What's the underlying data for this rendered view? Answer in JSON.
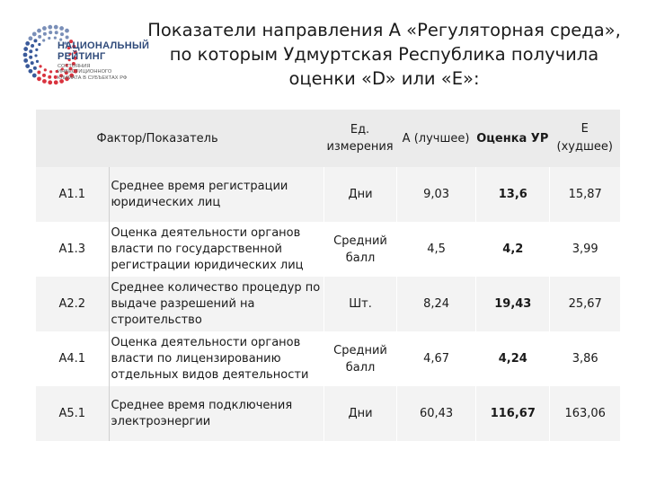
{
  "logo": {
    "line1": "НАЦИОНАЛЬНЫЙ",
    "line2": "РЕЙТИНГ",
    "sub1": "СОСТОЯНИЯ",
    "sub2": "ИНВЕСТИЦИОННОГО",
    "sub3": "КЛИМАТА В СУБЪЕКТАХ РФ"
  },
  "title": {
    "line1": "Показатели направления А «Регуляторная среда»,",
    "line2": "по которым Удмуртская Республика получила",
    "line3": "оценки «D» или «E»:"
  },
  "table": {
    "header": {
      "factor": "Фактор/Показатель",
      "unit1": "Ед.",
      "unit2": "измерения",
      "a": "А  (лучшее)",
      "ur": "Оценка УР",
      "e1": "Е",
      "e2": "(худшее)"
    },
    "rows": [
      {
        "code": "А1.1",
        "name": "Среднее время регистрации юридических лиц",
        "unit": "Дни",
        "a": "9,03",
        "ur": "13,6",
        "e": "15,87"
      },
      {
        "code": "А1.3",
        "name": "Оценка деятельности органов власти по государственной регистрации юридических лиц",
        "unit": "Средний балл",
        "a": "4,5",
        "ur": "4,2",
        "e": "3,99"
      },
      {
        "code": "А2.2",
        "name": "Среднее количество процедур по выдаче разрешений на строительство",
        "unit": "Шт.",
        "a": "8,24",
        "ur": "19,43",
        "e": "25,67"
      },
      {
        "code": "А4.1",
        "name": "Оценка деятельности органов власти по лицензированию отдельных видов деятельности",
        "unit": "Средний балл",
        "a": "4,67",
        "ur": "4,24",
        "e": "3,86"
      },
      {
        "code": "А5.1",
        "name": "Среднее время подключения электроэнергии",
        "unit": "Дни",
        "a": "60,43",
        "ur": "116,67",
        "e": "163,06"
      }
    ]
  }
}
